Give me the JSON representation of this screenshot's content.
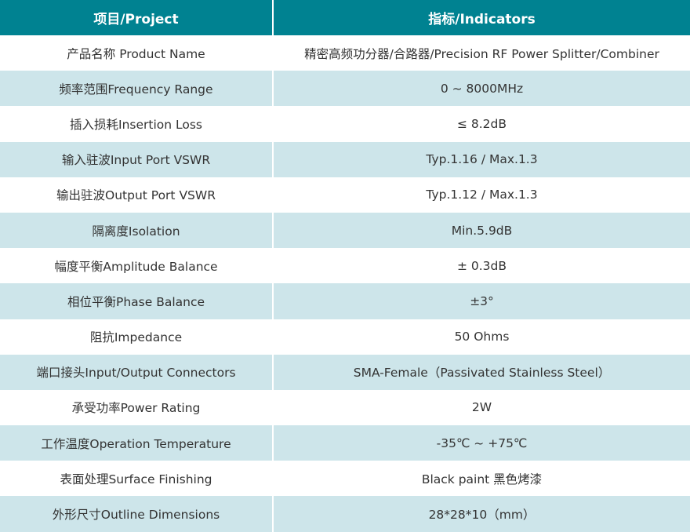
{
  "header": {
    "project": "项目/Project",
    "indicators": "指标/Indicators"
  },
  "colors": {
    "header_bg": "#008291",
    "alt_row_bg": "#cde5ea",
    "text": "#333333"
  },
  "rows": [
    {
      "project": "产品名称 Product Name",
      "value": "精密高频功分器/合路器/Precision RF Power Splitter/Combiner"
    },
    {
      "project": "频率范围Frequency Range",
      "value": "0 ~ 8000MHz"
    },
    {
      "project": "插入损耗Insertion Loss",
      "value": "≤ 8.2dB"
    },
    {
      "project": "输入驻波Input Port  VSWR",
      "value": "Typ.1.16 / Max.1.3"
    },
    {
      "project": "输出驻波Output Port VSWR",
      "value": "Typ.1.12 / Max.1.3"
    },
    {
      "project": "隔离度Isolation",
      "value": "Min.5.9dB"
    },
    {
      "project": "幅度平衡Amplitude Balance",
      "value": "± 0.3dB"
    },
    {
      "project": "相位平衡Phase Balance",
      "value": "±3°"
    },
    {
      "project": "阻抗Impedance",
      "value": "50 Ohms"
    },
    {
      "project": "端口接头Input/Output Connectors",
      "value": "SMA-Female（Passivated Stainless Steel）"
    },
    {
      "project": "承受功率Power Rating",
      "value": "2W"
    },
    {
      "project": "工作温度Operation Temperature",
      "value": "-35℃ ~ +75℃"
    },
    {
      "project": "表面处理Surface Finishing",
      "value": "Black paint 黑色烤漆"
    },
    {
      "project": "外形尺寸Outline Dimensions",
      "value": "28*28*10（mm）"
    }
  ]
}
